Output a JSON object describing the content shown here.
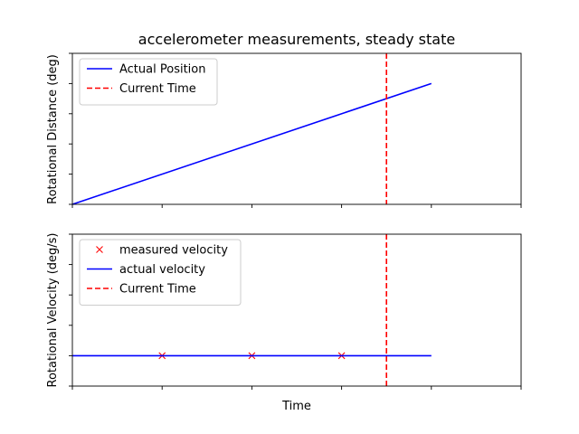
{
  "colors": {
    "blue": "#0000ff",
    "red": "#ff0000",
    "axis": "#000000",
    "legend_border": "#cccccc"
  },
  "chart_data": [
    {
      "type": "line",
      "title": "accelerometer measurements, steady state",
      "xlabel": "",
      "ylabel": "Rotational Distance (deg)",
      "xlim": [
        0,
        5
      ],
      "ylim": [
        0,
        5
      ],
      "tick_labels_shown": false,
      "legend": "top-left",
      "series": [
        {
          "name": "Actual Position",
          "kind": "line",
          "style": "solid",
          "color": "#0000ff",
          "x": [
            0,
            4
          ],
          "y": [
            0,
            4
          ]
        },
        {
          "name": "Current Time",
          "kind": "vline",
          "style": "dashed",
          "color": "#ff0000",
          "x": 3.5
        }
      ]
    },
    {
      "type": "line",
      "title": "",
      "xlabel": "Time",
      "ylabel": "Rotational Velocity (deg/s)",
      "xlim": [
        0,
        5
      ],
      "ylim": [
        0,
        5
      ],
      "tick_labels_shown": false,
      "legend": "top-left",
      "series": [
        {
          "name": "measured velocity",
          "kind": "marker",
          "marker": "x",
          "color": "#ff0000",
          "x": [
            1,
            2,
            3
          ],
          "y": [
            1,
            1,
            1
          ]
        },
        {
          "name": "actual velocity",
          "kind": "line",
          "style": "solid",
          "color": "#0000ff",
          "x": [
            0,
            4
          ],
          "y": [
            1,
            1
          ]
        },
        {
          "name": "Current Time",
          "kind": "vline",
          "style": "dashed",
          "color": "#ff0000",
          "x": 3.5
        }
      ]
    }
  ]
}
